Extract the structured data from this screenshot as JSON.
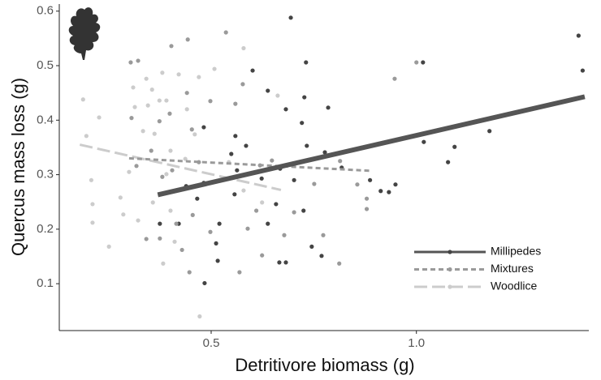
{
  "chart_data": {
    "type": "scatter",
    "x_label": "Detritivore biomass (g)",
    "y_label": "Quercus mass loss (g)",
    "xlim": [
      0.13,
      1.42
    ],
    "ylim": [
      0.014,
      0.613
    ],
    "xticks": [
      0.5,
      {
        "value": 1,
        "label": "1.0"
      }
    ],
    "yticks": [
      0.1,
      0.2,
      0.3,
      0.4,
      0.5,
      0.6
    ],
    "grid": false,
    "legend": "bottom-right",
    "series": [
      {
        "name": "Millipedes",
        "color": "#444444",
        "line_color": "#555555",
        "line_style": "solid",
        "x": [
          0.694,
          1.395,
          1.016,
          1.405,
          0.731,
          0.601,
          0.638,
          0.727,
          0.682,
          0.785,
          0.482,
          0.721,
          0.559,
          0.585,
          0.733,
          0.777,
          1.018,
          1.178,
          1.093,
          1.077,
          0.949,
          0.913,
          0.933,
          0.887,
          0.549,
          0.563,
          0.439,
          0.466,
          0.482,
          0.52,
          0.512,
          0.516,
          0.484,
          0.666,
          0.682,
          0.745,
          0.769,
          0.638,
          0.658,
          0.702,
          0.818,
          0.375,
          0.421,
          0.623,
          0.668,
          0.725,
          0.557
        ],
        "y": [
          0.588,
          0.555,
          0.506,
          0.491,
          0.506,
          0.491,
          0.454,
          0.442,
          0.42,
          0.423,
          0.387,
          0.395,
          0.371,
          0.353,
          0.353,
          0.341,
          0.36,
          0.38,
          0.351,
          0.323,
          0.282,
          0.27,
          0.268,
          0.29,
          0.338,
          0.308,
          0.279,
          0.256,
          0.285,
          0.21,
          0.174,
          0.142,
          0.101,
          0.139,
          0.139,
          0.168,
          0.151,
          0.21,
          0.246,
          0.29,
          0.313,
          0.21,
          0.21,
          0.293,
          0.311,
          0.234,
          0.264
        ],
        "line": {
          "x": [
            0.37,
            1.41
          ],
          "y": [
            0.263,
            0.443
          ]
        }
      },
      {
        "name": "Mixtures",
        "color": "#9a9a9a",
        "line_color": "#9a9a9a",
        "line_style": "dashed",
        "x": [
          0.536,
          0.304,
          0.322,
          0.403,
          0.443,
          1.0,
          0.947,
          0.577,
          0.441,
          0.498,
          0.559,
          0.374,
          0.306,
          0.399,
          0.453,
          0.354,
          0.318,
          0.381,
          0.405,
          0.47,
          0.619,
          0.648,
          0.814,
          0.856,
          0.879,
          0.879,
          0.455,
          0.415,
          0.498,
          0.342,
          0.375,
          0.429,
          0.447,
          0.569,
          0.624,
          0.812,
          0.773,
          0.678,
          0.751,
          0.702,
          0.61,
          0.589
        ],
        "y": [
          0.561,
          0.506,
          0.509,
          0.536,
          0.548,
          0.506,
          0.476,
          0.466,
          0.45,
          0.435,
          0.43,
          0.398,
          0.404,
          0.412,
          0.383,
          0.344,
          0.316,
          0.296,
          0.308,
          0.323,
          0.317,
          0.326,
          0.325,
          0.282,
          0.256,
          0.237,
          0.226,
          0.21,
          0.195,
          0.182,
          0.183,
          0.162,
          0.121,
          0.121,
          0.152,
          0.137,
          0.189,
          0.189,
          0.283,
          0.231,
          0.234,
          0.201
        ],
        "line": {
          "x": [
            0.3,
            0.89
          ],
          "y": [
            0.33,
            0.307
          ]
        }
      },
      {
        "name": "Woodlice",
        "color": "#cccccc",
        "line_color": "#cccccc",
        "line_style": "long-dashed",
        "x": [
          0.188,
          0.196,
          0.227,
          0.208,
          0.211,
          0.211,
          0.251,
          0.31,
          0.342,
          0.356,
          0.381,
          0.421,
          0.47,
          0.314,
          0.346,
          0.391,
          0.374,
          0.334,
          0.362,
          0.401,
          0.437,
          0.3,
          0.279,
          0.286,
          0.322,
          0.358,
          0.401,
          0.411,
          0.383,
          0.472,
          0.543,
          0.579,
          0.624,
          0.662,
          0.579,
          0.508,
          0.441,
          0.391,
          0.46
        ],
        "y": [
          0.438,
          0.371,
          0.405,
          0.29,
          0.246,
          0.212,
          0.168,
          0.46,
          0.476,
          0.456,
          0.487,
          0.484,
          0.479,
          0.424,
          0.427,
          0.436,
          0.436,
          0.38,
          0.375,
          0.344,
          0.329,
          0.305,
          0.258,
          0.227,
          0.216,
          0.249,
          0.234,
          0.177,
          0.137,
          0.04,
          0.323,
          0.271,
          0.249,
          0.445,
          0.532,
          0.494,
          0.42,
          0.301,
          0.374
        ],
        "line": {
          "x": [
            0.18,
            0.67
          ],
          "y": [
            0.355,
            0.272
          ]
        }
      }
    ]
  }
}
